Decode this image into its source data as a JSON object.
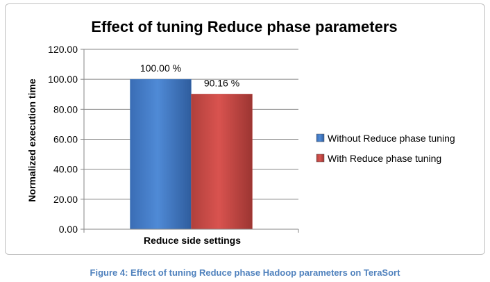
{
  "chart_data": {
    "type": "bar",
    "title": "Effect of tuning Reduce phase parameters",
    "xlabel": "Reduce side settings",
    "ylabel": "Normalized execution time",
    "categories": [
      "Reduce side settings"
    ],
    "series": [
      {
        "name": "Without Reduce phase tuning",
        "values": [
          100.0
        ],
        "label": "100.00 %",
        "color": "#4f81bd"
      },
      {
        "name": "With Reduce phase tuning",
        "values": [
          90.16
        ],
        "label": "90.16 %",
        "color": "#c0504d"
      }
    ],
    "ylim": [
      0,
      120
    ],
    "yticks": [
      "0.00",
      "20.00",
      "40.00",
      "60.00",
      "80.00",
      "100.00",
      "120.00"
    ],
    "grid": true,
    "legend_position": "right"
  },
  "caption": "Figure 4: Effect of tuning Reduce phase Hadoop parameters on TeraSort"
}
